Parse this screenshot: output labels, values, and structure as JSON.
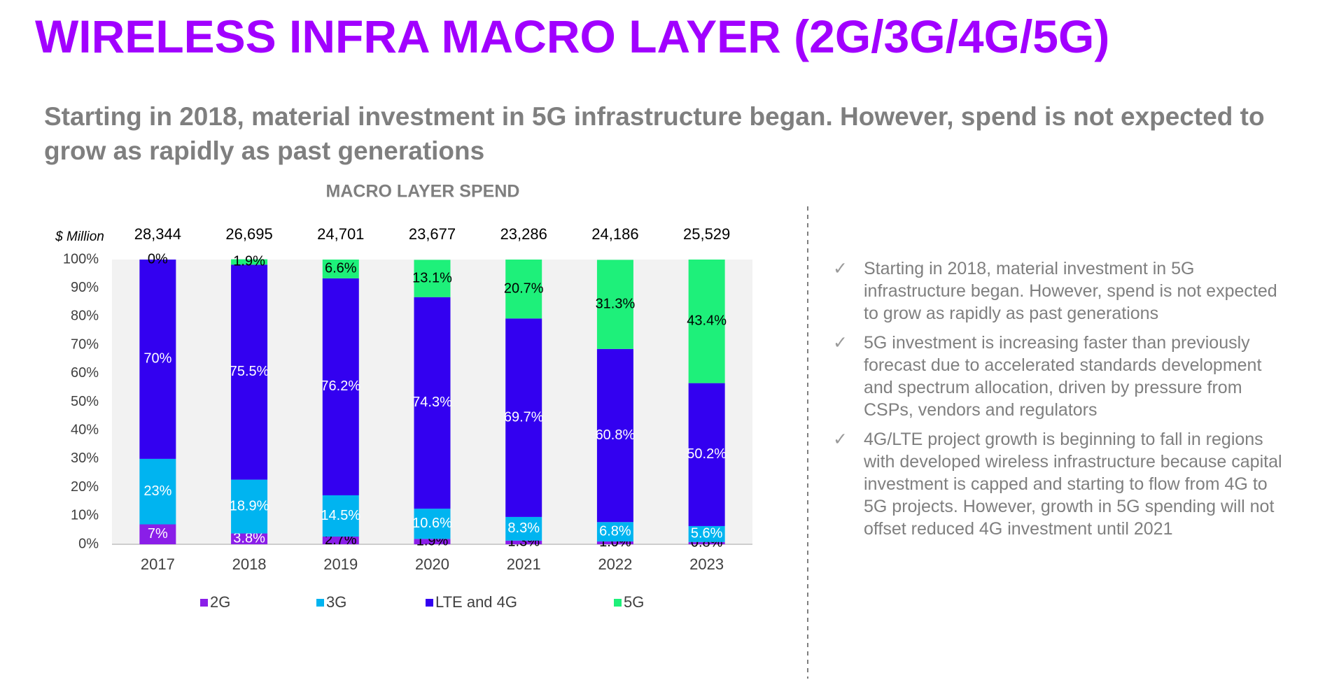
{
  "header": {
    "title": "WIRELESS INFRA MACRO LAYER (2G/3G/4G/5G)",
    "subtitle": "Starting in 2018, material investment in 5G infrastructure began. However, spend is not expected to grow as rapidly as past generations"
  },
  "chart_data": {
    "type": "stacked_bar",
    "title": "MACRO LAYER SPEND",
    "y_unit": "$ Million",
    "categories": [
      "2017",
      "2018",
      "2019",
      "2020",
      "2021",
      "2022",
      "2023"
    ],
    "totals": {
      "values": [
        28344,
        26695,
        24701,
        23677,
        23286,
        24186,
        25529
      ],
      "value_labels": [
        "28,344",
        "26,695",
        "24,701",
        "23,677",
        "23,286",
        "24,186",
        "25,529"
      ]
    },
    "series": [
      {
        "name": "2G",
        "color": "#8a1ee8",
        "values": [
          7,
          3.8,
          2.7,
          1.9,
          1.3,
          1.0,
          0.8
        ],
        "value_labels": [
          "7%",
          "3.8%",
          "2.7%",
          "1.9%",
          "1.3%",
          "1.0%",
          "0.8%"
        ]
      },
      {
        "name": "3G",
        "color": "#00b4f0",
        "values": [
          23,
          18.9,
          14.5,
          10.6,
          8.3,
          6.8,
          5.6
        ],
        "value_labels": [
          "23%",
          "18.9%",
          "14.5%",
          "10.6%",
          "8.3%",
          "6.8%",
          "5.6%"
        ]
      },
      {
        "name": "LTE and 4G",
        "color": "#3300f0",
        "values": [
          70,
          75.5,
          76.2,
          74.3,
          69.7,
          60.8,
          50.2
        ],
        "value_labels": [
          "70%",
          "75.5%",
          "76.2%",
          "74.3%",
          "69.7%",
          "60.8%",
          "50.2%"
        ]
      },
      {
        "name": "5G",
        "color": "#1ef07a",
        "values": [
          0,
          1.9,
          6.6,
          13.1,
          20.7,
          31.3,
          43.4
        ],
        "value_labels": [
          "0%",
          "1.9%",
          "6.6%",
          "13.1%",
          "20.7%",
          "31.3%",
          "43.4%"
        ]
      }
    ],
    "ylim": [
      0,
      100
    ],
    "yticks": [
      {
        "value": 0,
        "label": "0%"
      },
      {
        "value": 10,
        "label": "10%"
      },
      {
        "value": 20,
        "label": "20%"
      },
      {
        "value": 30,
        "label": "30%"
      },
      {
        "value": 40,
        "label": "40%"
      },
      {
        "value": 50,
        "label": "50%"
      },
      {
        "value": 60,
        "label": "60%"
      },
      {
        "value": 70,
        "label": "70%"
      },
      {
        "value": 80,
        "label": "80%"
      },
      {
        "value": 90,
        "label": "90%"
      },
      {
        "value": 100,
        "label": "100%"
      }
    ]
  },
  "notes": [
    "Starting in 2018, material investment in 5G infrastructure began. However, spend is not expected to grow as rapidly as past generations",
    "5G investment is increasing faster than previously forecast due to accelerated standards development and spectrum allocation, driven by pressure from CSPs, vendors and regulators",
    "4G/LTE project growth is beginning to fall in regions with developed wireless infrastructure because capital investment is capped and starting to flow from 4G to 5G projects. However, growth in 5G spending will not offset reduced 4G investment until 2021"
  ]
}
